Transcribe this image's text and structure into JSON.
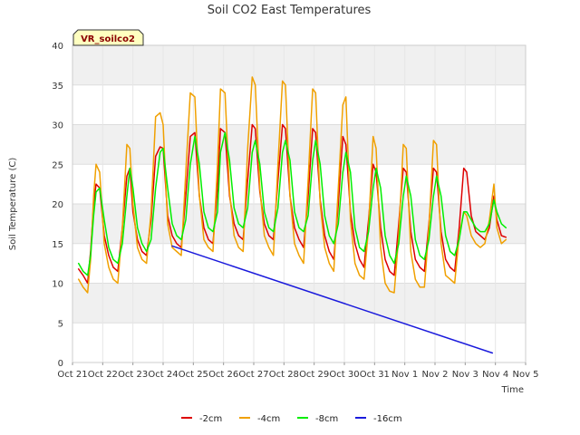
{
  "chart_data": {
    "type": "line",
    "title": "Soil CO2 East Temperatures",
    "xlabel": "Time",
    "ylabel": "Soil Temperature (C)",
    "badge": "VR_soilco2",
    "xlim": [
      0,
      15
    ],
    "ylim": [
      0,
      40
    ],
    "yticks": [
      0,
      5,
      10,
      15,
      20,
      25,
      30,
      35,
      40
    ],
    "xtick_labels": [
      "Oct 21",
      "Oct 22",
      "Oct 23",
      "Oct 24",
      "Oct 25",
      "Oct 26",
      "Oct 27",
      "Oct 28",
      "Oct 29",
      "Oct 30",
      "Oct 31",
      "Nov 1",
      "Nov 2",
      "Nov 3",
      "Nov 4",
      "Nov 5"
    ],
    "x_units": "days since Oct 21 00:00",
    "legend_position": "bottom-center",
    "series": [
      {
        "name": "-2cm",
        "color": "#dd0000",
        "x": [
          0.2,
          0.35,
          0.5,
          0.6,
          0.7,
          0.78,
          0.9,
          1.05,
          1.2,
          1.35,
          1.5,
          1.65,
          1.8,
          1.9,
          2.0,
          2.15,
          2.3,
          2.45,
          2.6,
          2.75,
          2.9,
          3.0,
          3.15,
          3.3,
          3.45,
          3.6,
          3.75,
          3.9,
          4.05,
          4.2,
          4.35,
          4.5,
          4.65,
          4.8,
          4.9,
          5.05,
          5.2,
          5.35,
          5.5,
          5.65,
          5.8,
          5.95,
          6.05,
          6.2,
          6.35,
          6.5,
          6.65,
          6.8,
          6.95,
          7.05,
          7.2,
          7.35,
          7.5,
          7.65,
          7.8,
          7.95,
          8.05,
          8.2,
          8.35,
          8.5,
          8.65,
          8.8,
          8.95,
          9.05,
          9.2,
          9.35,
          9.5,
          9.65,
          9.8,
          9.95,
          10.05,
          10.2,
          10.35,
          10.5,
          10.65,
          10.8,
          10.95,
          11.05,
          11.2,
          11.35,
          11.5,
          11.65,
          11.8,
          11.95,
          12.05,
          12.2,
          12.35,
          12.5,
          12.65,
          12.8,
          12.95,
          13.05,
          13.2,
          13.35,
          13.5,
          13.65,
          13.8,
          13.95,
          14.05,
          14.2,
          14.35
        ],
        "values": [
          11.8,
          11.0,
          10.0,
          14.0,
          20.0,
          22.5,
          22.0,
          16.0,
          13.5,
          12.0,
          11.5,
          17.0,
          23.5,
          24.5,
          19.0,
          15.5,
          14.0,
          13.5,
          18.0,
          26.0,
          27.2,
          27.0,
          18.5,
          16.0,
          15.0,
          14.5,
          21.0,
          28.5,
          29.0,
          21.0,
          17.0,
          15.5,
          15.0,
          22.0,
          29.5,
          29.0,
          21.0,
          17.5,
          16.0,
          15.5,
          23.0,
          30.0,
          29.5,
          21.5,
          17.5,
          16.0,
          15.5,
          23.0,
          30.0,
          29.5,
          21.0,
          17.0,
          15.5,
          14.5,
          21.0,
          29.5,
          29.0,
          20.5,
          16.0,
          14.0,
          13.0,
          20.0,
          28.5,
          27.5,
          19.0,
          15.0,
          13.0,
          12.0,
          18.0,
          25.0,
          24.0,
          17.0,
          13.0,
          11.5,
          11.0,
          17.5,
          24.5,
          24.0,
          16.5,
          13.0,
          12.0,
          11.5,
          17.5,
          24.5,
          24.0,
          16.5,
          13.0,
          12.0,
          11.5,
          17.0,
          24.5,
          24.0,
          18.5,
          16.5,
          16.0,
          15.5,
          17.0,
          21.0,
          18.0,
          16.0,
          15.8
        ]
      },
      {
        "name": "-4cm",
        "color": "#f0a000",
        "x": [
          0.2,
          0.35,
          0.5,
          0.6,
          0.7,
          0.78,
          0.9,
          1.05,
          1.2,
          1.35,
          1.5,
          1.65,
          1.8,
          1.9,
          2.0,
          2.15,
          2.3,
          2.45,
          2.6,
          2.75,
          2.9,
          3.0,
          3.15,
          3.3,
          3.45,
          3.6,
          3.75,
          3.9,
          4.05,
          4.2,
          4.35,
          4.5,
          4.65,
          4.8,
          4.9,
          5.05,
          5.2,
          5.35,
          5.5,
          5.65,
          5.8,
          5.95,
          6.05,
          6.2,
          6.35,
          6.5,
          6.65,
          6.8,
          6.95,
          7.05,
          7.2,
          7.35,
          7.5,
          7.65,
          7.8,
          7.95,
          8.05,
          8.2,
          8.35,
          8.5,
          8.65,
          8.8,
          8.95,
          9.05,
          9.2,
          9.35,
          9.5,
          9.65,
          9.8,
          9.95,
          10.05,
          10.2,
          10.35,
          10.5,
          10.65,
          10.8,
          10.95,
          11.05,
          11.2,
          11.35,
          11.5,
          11.65,
          11.8,
          11.95,
          12.05,
          12.2,
          12.35,
          12.5,
          12.65,
          12.8,
          12.95,
          13.05,
          13.2,
          13.35,
          13.5,
          13.65,
          13.8,
          13.95,
          14.05,
          14.2,
          14.35
        ],
        "values": [
          10.5,
          9.5,
          8.8,
          13.0,
          21.0,
          25.0,
          24.0,
          15.0,
          12.0,
          10.5,
          10.0,
          17.0,
          27.5,
          27.0,
          20.0,
          14.5,
          13.0,
          12.5,
          19.0,
          31.0,
          31.5,
          30.0,
          17.5,
          14.5,
          14.0,
          13.5,
          24.0,
          34.0,
          33.5,
          21.0,
          15.5,
          14.5,
          14.0,
          25.0,
          34.5,
          34.0,
          21.5,
          16.0,
          14.5,
          14.0,
          27.0,
          36.0,
          35.0,
          22.0,
          16.0,
          14.5,
          13.5,
          25.0,
          35.5,
          35.0,
          21.0,
          15.0,
          13.5,
          12.5,
          23.0,
          34.5,
          34.0,
          20.0,
          14.5,
          12.5,
          11.5,
          22.0,
          32.5,
          33.5,
          18.0,
          12.5,
          11.0,
          10.5,
          17.0,
          28.5,
          27.0,
          14.5,
          10.0,
          9.0,
          8.8,
          16.0,
          27.5,
          27.0,
          14.0,
          10.5,
          9.5,
          9.5,
          17.0,
          28.0,
          27.5,
          15.0,
          11.0,
          10.5,
          10.0,
          16.0,
          19.0,
          18.5,
          16.0,
          15.0,
          14.5,
          15.0,
          18.0,
          22.5,
          17.0,
          15.0,
          15.5
        ]
      },
      {
        "name": "-8cm",
        "color": "#00ee00",
        "x": [
          0.2,
          0.35,
          0.5,
          0.6,
          0.7,
          0.78,
          0.9,
          1.05,
          1.2,
          1.35,
          1.5,
          1.65,
          1.8,
          1.9,
          2.0,
          2.15,
          2.3,
          2.45,
          2.6,
          2.75,
          2.9,
          3.0,
          3.15,
          3.3,
          3.45,
          3.6,
          3.75,
          3.9,
          4.05,
          4.2,
          4.35,
          4.5,
          4.65,
          4.8,
          4.9,
          5.05,
          5.2,
          5.35,
          5.5,
          5.65,
          5.8,
          5.95,
          6.05,
          6.2,
          6.35,
          6.5,
          6.65,
          6.8,
          6.95,
          7.05,
          7.2,
          7.35,
          7.5,
          7.65,
          7.8,
          7.95,
          8.05,
          8.2,
          8.35,
          8.5,
          8.65,
          8.8,
          8.95,
          9.05,
          9.2,
          9.35,
          9.5,
          9.65,
          9.8,
          9.95,
          10.05,
          10.2,
          10.35,
          10.5,
          10.65,
          10.8,
          10.95,
          11.05,
          11.2,
          11.35,
          11.5,
          11.65,
          11.8,
          11.95,
          12.05,
          12.2,
          12.35,
          12.5,
          12.65,
          12.8,
          12.95,
          13.05,
          13.2,
          13.35,
          13.5,
          13.65,
          13.8,
          13.95,
          14.05,
          14.2,
          14.35
        ],
        "values": [
          12.5,
          11.5,
          11.0,
          13.5,
          18.5,
          21.5,
          22.0,
          18.0,
          14.5,
          13.0,
          12.5,
          15.0,
          21.0,
          24.5,
          22.0,
          17.0,
          15.0,
          14.0,
          15.5,
          22.0,
          26.5,
          27.0,
          22.0,
          17.5,
          16.0,
          15.5,
          18.0,
          25.0,
          28.5,
          25.0,
          19.0,
          17.0,
          16.5,
          19.0,
          26.5,
          29.0,
          25.5,
          19.5,
          17.5,
          17.0,
          19.5,
          26.5,
          28.0,
          25.0,
          19.0,
          17.0,
          16.5,
          19.5,
          26.5,
          28.0,
          25.5,
          19.0,
          17.0,
          16.5,
          18.5,
          25.5,
          28.0,
          25.0,
          18.5,
          16.0,
          15.0,
          17.5,
          24.0,
          26.5,
          24.0,
          17.0,
          14.5,
          14.0,
          16.5,
          22.0,
          24.5,
          22.0,
          16.0,
          13.5,
          12.5,
          15.0,
          21.0,
          23.5,
          21.0,
          15.5,
          13.5,
          13.0,
          15.5,
          21.0,
          23.5,
          21.0,
          16.0,
          14.0,
          13.5,
          15.5,
          19.0,
          19.0,
          18.0,
          17.0,
          16.5,
          16.5,
          17.5,
          20.5,
          19.0,
          17.5,
          17.0
        ]
      },
      {
        "name": "-16cm",
        "color": "#1a1adc",
        "x": [
          3.3,
          13.9
        ],
        "values": [
          14.7,
          1.2
        ]
      }
    ]
  }
}
